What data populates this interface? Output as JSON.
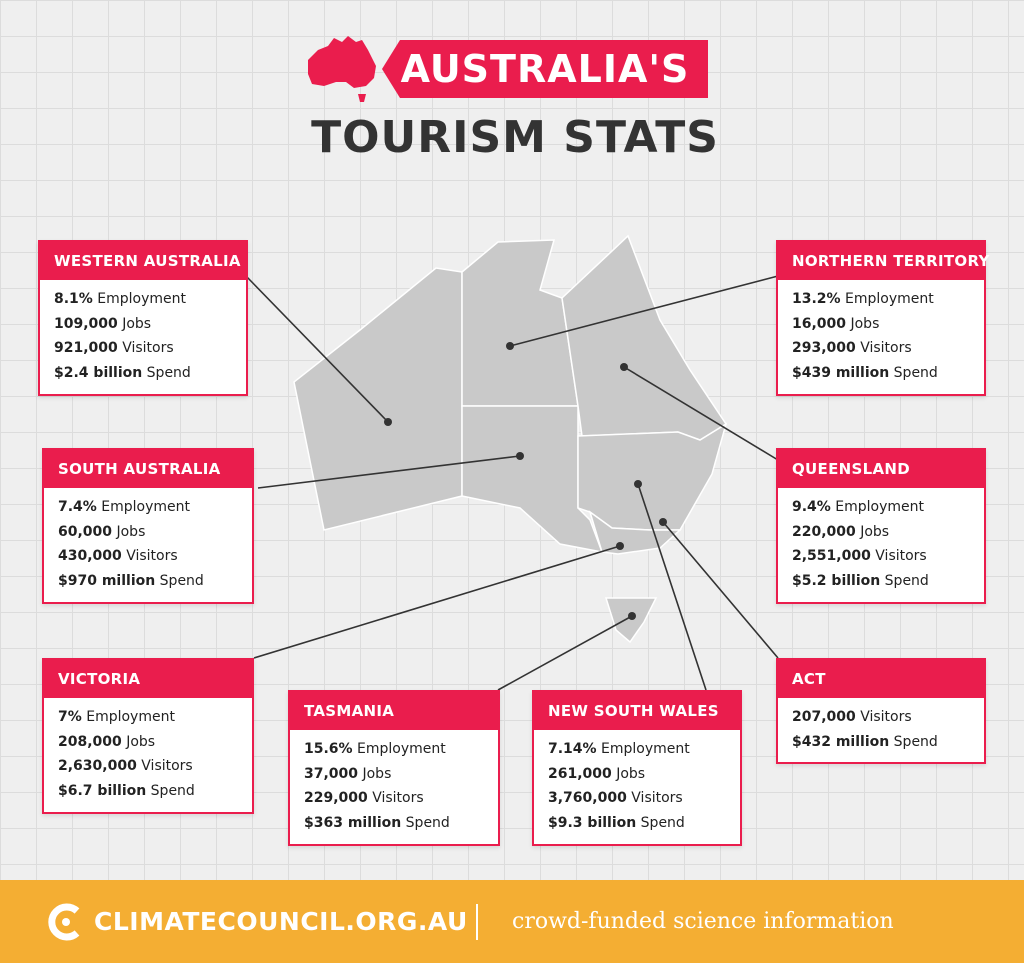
{
  "header": {
    "title_line1": "AUSTRALIA'S",
    "title_line2": "TOURISM STATS"
  },
  "colors": {
    "accent": "#ea1d4d",
    "map": "#c9c9c9",
    "footer": "#f4ae33",
    "title": "#333333"
  },
  "regions": {
    "wa": {
      "name": "WESTERN AUSTRALIA",
      "stats": [
        {
          "value": "8.1%",
          "label": " Employment"
        },
        {
          "value": "109,000",
          "label": " Jobs"
        },
        {
          "value": "921,000",
          "label": " Visitors"
        },
        {
          "value": "$2.4 billion",
          "label": " Spend"
        }
      ]
    },
    "nt": {
      "name": "NORTHERN TERRITORY",
      "stats": [
        {
          "value": "13.2%",
          "label": " Employment"
        },
        {
          "value": "16,000",
          "label": " Jobs"
        },
        {
          "value": "293,000",
          "label": " Visitors"
        },
        {
          "value": "$439 million",
          "label": " Spend"
        }
      ]
    },
    "sa": {
      "name": "SOUTH AUSTRALIA",
      "stats": [
        {
          "value": "7.4%",
          "label": " Employment"
        },
        {
          "value": "60,000",
          "label": " Jobs"
        },
        {
          "value": "430,000",
          "label": " Visitors"
        },
        {
          "value": "$970 million",
          "label": " Spend"
        }
      ]
    },
    "qld": {
      "name": "QUEENSLAND",
      "stats": [
        {
          "value": "9.4%",
          "label": " Employment"
        },
        {
          "value": "220,000",
          "label": " Jobs"
        },
        {
          "value": "2,551,000",
          "label": " Visitors"
        },
        {
          "value": "$5.2 billion",
          "label": " Spend"
        }
      ]
    },
    "vic": {
      "name": "VICTORIA",
      "stats": [
        {
          "value": "7%",
          "label": " Employment"
        },
        {
          "value": "208,000",
          "label": " Jobs"
        },
        {
          "value": "2,630,000",
          "label": " Visitors"
        },
        {
          "value": "$6.7 billion",
          "label": " Spend"
        }
      ]
    },
    "tas": {
      "name": "TASMANIA",
      "stats": [
        {
          "value": "15.6%",
          "label": " Employment"
        },
        {
          "value": "37,000",
          "label": " Jobs"
        },
        {
          "value": "229,000",
          "label": " Visitors"
        },
        {
          "value": "$363 million",
          "label": " Spend"
        }
      ]
    },
    "nsw": {
      "name": "NEW SOUTH WALES",
      "stats": [
        {
          "value": "7.14%",
          "label": " Employment"
        },
        {
          "value": "261,000",
          "label": " Jobs"
        },
        {
          "value": "3,760,000",
          "label": " Visitors"
        },
        {
          "value": "$9.3 billion",
          "label": " Spend"
        }
      ]
    },
    "act": {
      "name": "ACT",
      "stats": [
        {
          "value": "207,000",
          "label": " Visitors"
        },
        {
          "value": "$432 million",
          "label": " Spend"
        }
      ]
    }
  },
  "footer": {
    "brand": "CLIMATECOUNCIL.ORG.AU",
    "tagline": "crowd-funded science information"
  }
}
